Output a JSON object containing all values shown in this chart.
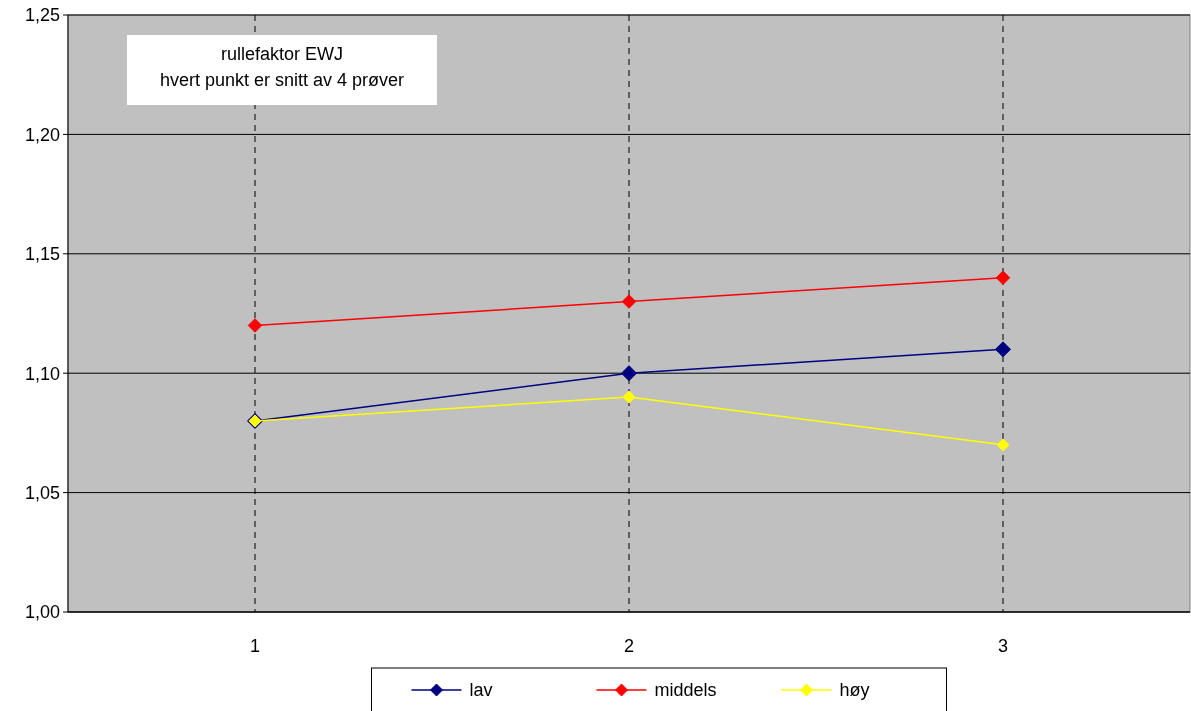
{
  "chart_data": {
    "type": "line",
    "categories": [
      "1",
      "2",
      "3"
    ],
    "series": [
      {
        "name": "lav",
        "color": "#000080",
        "values": [
          1.08,
          1.1,
          1.11
        ]
      },
      {
        "name": "middels",
        "color": "#ff0000",
        "values": [
          1.12,
          1.13,
          1.14
        ]
      },
      {
        "name": "høy",
        "color": "#ffff00",
        "values": [
          1.08,
          1.09,
          1.07
        ]
      }
    ],
    "ylim": [
      1.0,
      1.25
    ],
    "yticks": [
      {
        "value": 1.0,
        "label": "1,00"
      },
      {
        "value": 1.05,
        "label": "1,05"
      },
      {
        "value": 1.1,
        "label": "1,10"
      },
      {
        "value": 1.15,
        "label": "1,15"
      },
      {
        "value": 1.2,
        "label": "1,20"
      },
      {
        "value": 1.25,
        "label": "1,25"
      }
    ],
    "annotations": [
      "rullefaktor EWJ",
      "hvert punkt er snitt av 4 prøver"
    ],
    "grid": true,
    "legend": "bottom",
    "marker": "diamond",
    "line_style": "solid"
  }
}
